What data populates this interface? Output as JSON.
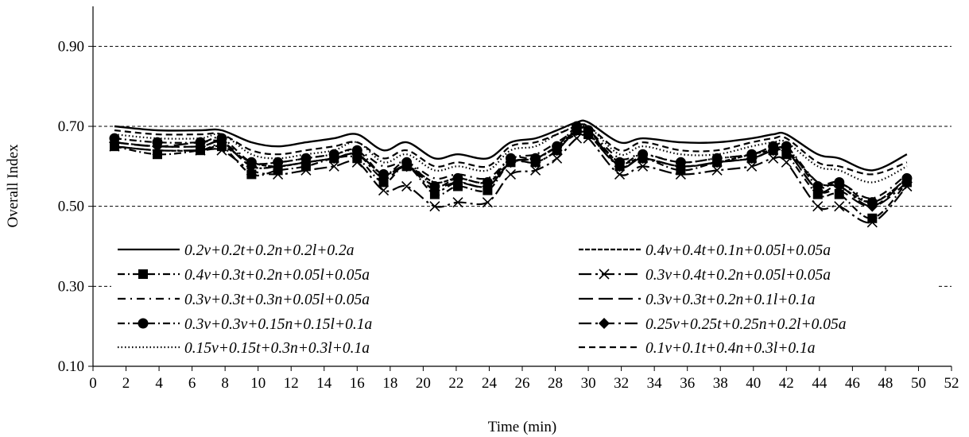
{
  "chart_data": {
    "type": "line",
    "title": "",
    "xlabel": "Time (min)",
    "ylabel": "Overall Index",
    "xlim": [
      0,
      52
    ],
    "ylim": [
      0.1,
      1.0
    ],
    "x_ticks": [
      "0",
      "2",
      "4",
      "6",
      "8",
      "10",
      "12",
      "14",
      "16",
      "18",
      "20",
      "22",
      "24",
      "26",
      "28",
      "30",
      "32",
      "34",
      "36",
      "38",
      "40",
      "42",
      "44",
      "46",
      "48",
      "50",
      "52"
    ],
    "y_ticks": [
      "0.10",
      "0.30",
      "0.50",
      "0.70",
      "0.90"
    ],
    "grid": "horizontal dashed",
    "legend_position": "bottom-inside, two columns",
    "x": [
      1.3,
      3.9,
      6.5,
      7.8,
      9.6,
      11.2,
      12.9,
      14.6,
      16.0,
      17.6,
      19.0,
      20.7,
      22.1,
      23.9,
      25.3,
      26.8,
      28.1,
      29.3,
      30.0,
      31.9,
      33.3,
      35.6,
      37.8,
      39.9,
      41.2,
      42.0,
      43.9,
      45.2,
      47.2,
      49.3
    ],
    "series": [
      {
        "name": "0.2v+0.2t+0.2n+0.2l+0.2a",
        "style": "solid",
        "marker": "none",
        "values": [
          0.7,
          0.69,
          0.69,
          0.69,
          0.66,
          0.65,
          0.66,
          0.67,
          0.68,
          0.64,
          0.66,
          0.62,
          0.63,
          0.62,
          0.66,
          0.67,
          0.69,
          0.71,
          0.71,
          0.66,
          0.67,
          0.66,
          0.66,
          0.67,
          0.68,
          0.68,
          0.63,
          0.62,
          0.59,
          0.63
        ]
      },
      {
        "name": "0.4v+0.4t+0.1n+0.05l+0.05a",
        "style": "dense-dash",
        "marker": "none",
        "values": [
          0.65,
          0.64,
          0.64,
          0.65,
          0.61,
          0.6,
          0.61,
          0.62,
          0.63,
          0.58,
          0.6,
          0.56,
          0.57,
          0.56,
          0.61,
          0.62,
          0.65,
          0.68,
          0.68,
          0.61,
          0.62,
          0.6,
          0.61,
          0.63,
          0.64,
          0.64,
          0.56,
          0.55,
          0.51,
          0.57
        ]
      },
      {
        "name": "0.4v+0.3t+0.2n+0.05l+0.05a",
        "style": "dash-dot",
        "marker": "square",
        "values": [
          0.65,
          0.63,
          0.64,
          0.65,
          0.58,
          0.59,
          0.6,
          0.62,
          0.62,
          0.56,
          0.6,
          0.53,
          0.55,
          0.54,
          0.61,
          0.61,
          0.64,
          0.69,
          0.68,
          0.6,
          0.62,
          0.59,
          0.61,
          0.62,
          0.64,
          0.63,
          0.53,
          0.53,
          0.47,
          0.56
        ]
      },
      {
        "name": "0.3v+0.4t+0.2n+0.05l+0.05a",
        "style": "long-dash-dot",
        "marker": "x",
        "values": [
          0.65,
          0.64,
          0.64,
          0.64,
          0.59,
          0.58,
          0.59,
          0.6,
          0.61,
          0.54,
          0.55,
          0.5,
          0.51,
          0.51,
          0.58,
          0.59,
          0.62,
          0.67,
          0.67,
          0.58,
          0.6,
          0.58,
          0.59,
          0.6,
          0.62,
          0.61,
          0.5,
          0.5,
          0.46,
          0.55
        ]
      },
      {
        "name": "0.3v+0.3t+0.3n+0.05l+0.05a",
        "style": "dash-dot-wide",
        "marker": "none",
        "values": [
          0.66,
          0.65,
          0.65,
          0.66,
          0.61,
          0.61,
          0.62,
          0.63,
          0.64,
          0.6,
          0.61,
          0.57,
          0.58,
          0.57,
          0.62,
          0.63,
          0.66,
          0.69,
          0.69,
          0.62,
          0.63,
          0.61,
          0.62,
          0.63,
          0.65,
          0.65,
          0.56,
          0.56,
          0.52,
          0.58
        ]
      },
      {
        "name": "0.3v+0.3t+0.2n+0.1l+0.1a",
        "style": "long-dash",
        "marker": "none",
        "values": [
          0.66,
          0.65,
          0.66,
          0.66,
          0.6,
          0.6,
          0.61,
          0.62,
          0.63,
          0.58,
          0.6,
          0.55,
          0.56,
          0.55,
          0.61,
          0.62,
          0.65,
          0.69,
          0.69,
          0.6,
          0.62,
          0.6,
          0.61,
          0.62,
          0.64,
          0.64,
          0.54,
          0.54,
          0.5,
          0.57
        ]
      },
      {
        "name": "0.3v+0.3v+0.15n+0.15l+0.1a",
        "style": "dash-dot",
        "marker": "circle",
        "values": [
          0.67,
          0.66,
          0.66,
          0.67,
          0.61,
          0.61,
          0.62,
          0.63,
          0.64,
          0.58,
          0.61,
          0.55,
          0.57,
          0.56,
          0.62,
          0.62,
          0.65,
          0.7,
          0.69,
          0.61,
          0.63,
          0.61,
          0.62,
          0.63,
          0.65,
          0.65,
          0.55,
          0.56,
          0.51,
          0.57
        ]
      },
      {
        "name": "0.25v+0.25t+0.25n+0.2l+0.05a",
        "style": "long-dash-dot",
        "marker": "diamond",
        "values": [
          0.66,
          0.65,
          0.65,
          0.66,
          0.6,
          0.6,
          0.61,
          0.62,
          0.63,
          0.57,
          0.6,
          0.54,
          0.56,
          0.55,
          0.61,
          0.61,
          0.64,
          0.69,
          0.68,
          0.6,
          0.62,
          0.6,
          0.61,
          0.62,
          0.64,
          0.64,
          0.54,
          0.55,
          0.5,
          0.56
        ]
      },
      {
        "name": "0.15v+0.15t+0.3n+0.3l+0.1a",
        "style": "dotted",
        "marker": "none",
        "values": [
          0.68,
          0.67,
          0.67,
          0.68,
          0.63,
          0.62,
          0.63,
          0.64,
          0.66,
          0.61,
          0.63,
          0.59,
          0.6,
          0.59,
          0.64,
          0.65,
          0.68,
          0.7,
          0.7,
          0.63,
          0.65,
          0.63,
          0.63,
          0.65,
          0.66,
          0.66,
          0.6,
          0.59,
          0.56,
          0.6
        ]
      },
      {
        "name": "0.1v+0.1t+0.4n+0.3l+0.1a",
        "style": "short-dash",
        "marker": "none",
        "values": [
          0.69,
          0.68,
          0.68,
          0.68,
          0.64,
          0.63,
          0.64,
          0.65,
          0.66,
          0.62,
          0.64,
          0.6,
          0.61,
          0.6,
          0.65,
          0.66,
          0.68,
          0.7,
          0.7,
          0.64,
          0.66,
          0.64,
          0.64,
          0.66,
          0.67,
          0.67,
          0.61,
          0.6,
          0.58,
          0.61
        ]
      }
    ]
  }
}
